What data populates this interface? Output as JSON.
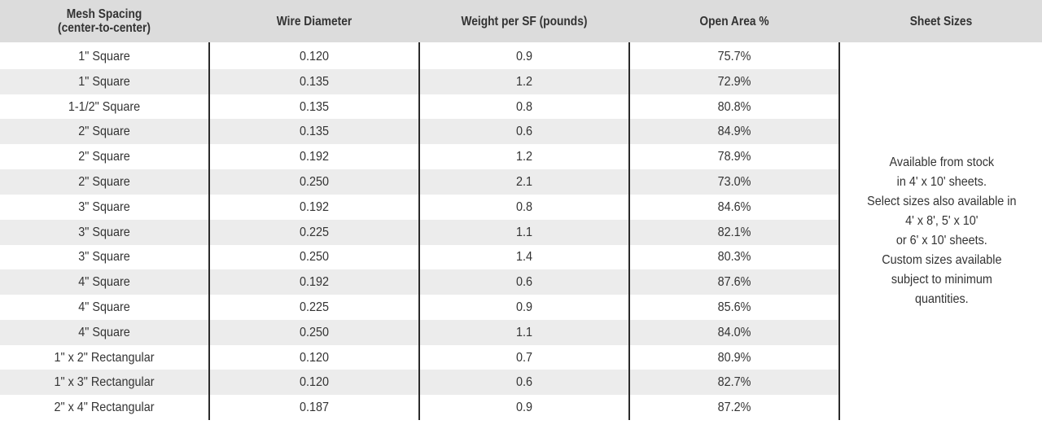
{
  "table": {
    "headers": {
      "mesh_line1": "Mesh Spacing",
      "mesh_line2": "(center-to-center)",
      "wire": "Wire Diameter",
      "weight": "Weight per SF (pounds)",
      "open": "Open Area %",
      "sizes": "Sheet Sizes"
    },
    "rows": [
      {
        "mesh": "1\" Square",
        "wire": "0.120",
        "weight": "0.9",
        "open": "75.7%"
      },
      {
        "mesh": "1\" Square",
        "wire": "0.135",
        "weight": "1.2",
        "open": "72.9%"
      },
      {
        "mesh": "1-1/2\" Square",
        "wire": "0.135",
        "weight": "0.8",
        "open": "80.8%"
      },
      {
        "mesh": "2\" Square",
        "wire": "0.135",
        "weight": "0.6",
        "open": "84.9%"
      },
      {
        "mesh": "2\" Square",
        "wire": "0.192",
        "weight": "1.2",
        "open": "78.9%"
      },
      {
        "mesh": "2\" Square",
        "wire": "0.250",
        "weight": "2.1",
        "open": "73.0%"
      },
      {
        "mesh": "3\" Square",
        "wire": "0.192",
        "weight": "0.8",
        "open": "84.6%"
      },
      {
        "mesh": "3\" Square",
        "wire": "0.225",
        "weight": "1.1",
        "open": "82.1%"
      },
      {
        "mesh": "3\" Square",
        "wire": "0.250",
        "weight": "1.4",
        "open": "80.3%"
      },
      {
        "mesh": "4\" Square",
        "wire": "0.192",
        "weight": "0.6",
        "open": "87.6%"
      },
      {
        "mesh": "4\" Square",
        "wire": "0.225",
        "weight": "0.9",
        "open": "85.6%"
      },
      {
        "mesh": "4\" Square",
        "wire": "0.250",
        "weight": "1.1",
        "open": "84.0%"
      },
      {
        "mesh": "1\" x 2\" Rectangular",
        "wire": "0.120",
        "weight": "0.7",
        "open": "80.9%"
      },
      {
        "mesh": "1\" x 3\" Rectangular",
        "wire": "0.120",
        "weight": "0.6",
        "open": "82.7%"
      },
      {
        "mesh": "2\" x 4\" Rectangular",
        "wire": "0.187",
        "weight": "0.9",
        "open": "87.2%"
      }
    ],
    "sheet_sizes_note": [
      "Available from stock",
      "in 4' x 10' sheets.",
      "Select sizes also available in",
      "4' x 8', 5' x 10'",
      "or 6' x 10' sheets.",
      "Custom sizes available",
      "subject to minimum",
      "quantities."
    ]
  },
  "colors": {
    "header_bg": "#dcdcdc",
    "stripe_bg": "#ececec",
    "divider": "#2b2b2b",
    "text": "#333333"
  }
}
